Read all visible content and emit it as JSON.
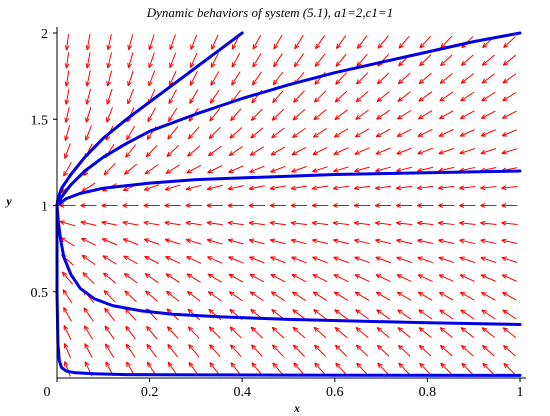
{
  "colors": {
    "field": "#ff0000",
    "trajectory": "#0000e6",
    "axis": "#000000"
  },
  "chart_data": {
    "type": "line",
    "title": "Dynamic behaviors of system (5.1), a1=2,c1=1",
    "xlabel": "x",
    "ylabel": "y",
    "xlim": [
      0,
      1
    ],
    "ylim": [
      0,
      2
    ],
    "grid": false,
    "x_ticks": [
      "0",
      "0.2",
      "0.4",
      "0.6",
      "0.8",
      "1"
    ],
    "y_ticks": [
      "0.5",
      "1",
      "1.5",
      "2"
    ],
    "direction_field": {
      "a1": 2,
      "c1": 1
    },
    "series": [
      {
        "x": [
          0,
          0.002,
          0.01,
          0.03,
          0.06,
          0.1,
          0.15,
          0.2,
          0.25,
          0.3,
          0.35,
          0.4
        ],
        "y": [
          1,
          1.04,
          1.1,
          1.18,
          1.28,
          1.39,
          1.5,
          1.6,
          1.7,
          1.8,
          1.9,
          2.0
        ]
      },
      {
        "x": [
          0,
          0.01,
          0.03,
          0.06,
          0.1,
          0.15,
          0.2,
          0.3,
          0.4,
          0.5,
          0.6,
          0.7,
          0.8,
          0.9,
          1.0
        ],
        "y": [
          1,
          1.05,
          1.12,
          1.2,
          1.28,
          1.36,
          1.43,
          1.53,
          1.62,
          1.7,
          1.77,
          1.83,
          1.89,
          1.95,
          2.0
        ]
      },
      {
        "x": [
          0,
          0.02,
          0.05,
          0.1,
          0.2,
          0.3,
          0.4,
          0.5,
          0.6,
          0.7,
          0.8,
          0.9,
          1.0
        ],
        "y": [
          1,
          1.04,
          1.07,
          1.1,
          1.13,
          1.15,
          1.16,
          1.17,
          1.18,
          1.185,
          1.19,
          1.195,
          1.2
        ]
      },
      {
        "x": [
          0,
          0.003,
          0.008,
          0.015,
          0.03,
          0.05,
          0.08,
          0.12,
          0.18,
          0.25,
          0.35,
          0.5,
          0.65,
          0.8,
          1.0
        ],
        "y": [
          1,
          0.9,
          0.8,
          0.7,
          0.6,
          0.52,
          0.46,
          0.42,
          0.39,
          0.37,
          0.355,
          0.34,
          0.33,
          0.32,
          0.31
        ]
      },
      {
        "x": [
          0,
          0,
          0.002,
          0.005,
          0.01,
          0.02,
          0.04,
          0.08,
          0.15,
          0.3,
          0.5,
          0.7,
          1.0
        ],
        "y": [
          1.0,
          0.5,
          0.2,
          0.1,
          0.06,
          0.04,
          0.03,
          0.025,
          0.02,
          0.018,
          0.017,
          0.016,
          0.015
        ]
      }
    ]
  }
}
